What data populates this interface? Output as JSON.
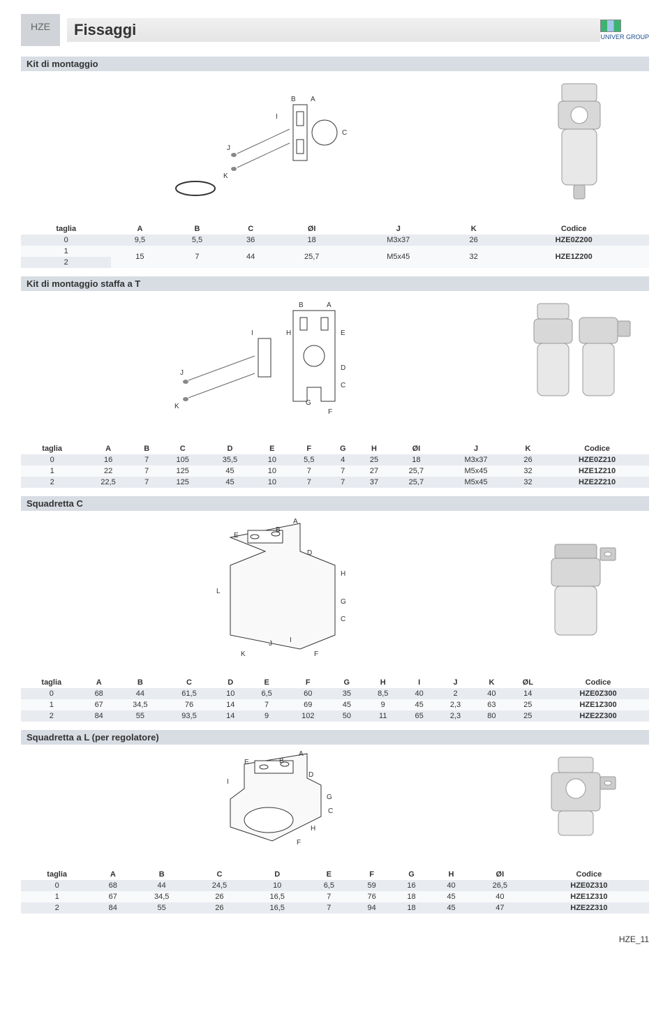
{
  "header": {
    "tag": "HZE",
    "title": "Fissaggi",
    "logo": "UNIVER GROUP"
  },
  "sections": {
    "s1": {
      "title": "Kit di montaggio"
    },
    "s2": {
      "title": "Kit di montaggio staffa a T"
    },
    "s3": {
      "title": "Squadretta C"
    },
    "s4": {
      "title": "Squadretta a L (per regolatore)"
    }
  },
  "table1": {
    "columns": [
      "taglia",
      "A",
      "B",
      "C",
      "ØI",
      "J",
      "K",
      "Codice"
    ],
    "rows": [
      [
        "0",
        "9,5",
        "5,5",
        "36",
        "18",
        "M3x37",
        "26",
        "HZE0Z200"
      ],
      [
        "1",
        "15",
        "7",
        "44",
        "25,7",
        "M5x45",
        "32",
        "HZE1Z200"
      ],
      [
        "2",
        "15",
        "7",
        "44",
        "25,7",
        "M5x45",
        "32",
        "HZE1Z200"
      ]
    ],
    "merged_row12": true
  },
  "table2": {
    "columns": [
      "taglia",
      "A",
      "B",
      "C",
      "D",
      "E",
      "F",
      "G",
      "H",
      "ØI",
      "J",
      "K",
      "Codice"
    ],
    "rows": [
      [
        "0",
        "16",
        "7",
        "105",
        "35,5",
        "10",
        "5,5",
        "4",
        "25",
        "18",
        "M3x37",
        "26",
        "HZE0Z210"
      ],
      [
        "1",
        "22",
        "7",
        "125",
        "45",
        "10",
        "7",
        "7",
        "27",
        "25,7",
        "M5x45",
        "32",
        "HZE1Z210"
      ],
      [
        "2",
        "22,5",
        "7",
        "125",
        "45",
        "10",
        "7",
        "7",
        "37",
        "25,7",
        "M5x45",
        "32",
        "HZE2Z210"
      ]
    ]
  },
  "table3": {
    "columns": [
      "taglia",
      "A",
      "B",
      "C",
      "D",
      "E",
      "F",
      "G",
      "H",
      "I",
      "J",
      "K",
      "ØL",
      "Codice"
    ],
    "rows": [
      [
        "0",
        "68",
        "44",
        "61,5",
        "10",
        "6,5",
        "60",
        "35",
        "8,5",
        "40",
        "2",
        "40",
        "14",
        "HZE0Z300"
      ],
      [
        "1",
        "67",
        "34,5",
        "76",
        "14",
        "7",
        "69",
        "45",
        "9",
        "45",
        "2,3",
        "63",
        "25",
        "HZE1Z300"
      ],
      [
        "2",
        "84",
        "55",
        "93,5",
        "14",
        "9",
        "102",
        "50",
        "11",
        "65",
        "2,3",
        "80",
        "25",
        "HZE2Z300"
      ]
    ]
  },
  "table4": {
    "columns": [
      "taglia",
      "A",
      "B",
      "C",
      "D",
      "E",
      "F",
      "G",
      "H",
      "ØI",
      "Codice"
    ],
    "rows": [
      [
        "0",
        "68",
        "44",
        "24,5",
        "10",
        "6,5",
        "59",
        "16",
        "40",
        "26,5",
        "HZE0Z310"
      ],
      [
        "1",
        "67",
        "34,5",
        "26",
        "16,5",
        "7",
        "76",
        "18",
        "45",
        "40",
        "HZE1Z310"
      ],
      [
        "2",
        "84",
        "55",
        "26",
        "16,5",
        "7",
        "94",
        "18",
        "45",
        "47",
        "HZE2Z310"
      ]
    ]
  },
  "diagram_labels": {
    "d1": [
      "A",
      "B",
      "C",
      "I",
      "J",
      "K"
    ],
    "d2": [
      "A",
      "B",
      "C",
      "D",
      "E",
      "F",
      "G",
      "H",
      "I",
      "J",
      "K"
    ],
    "d3": [
      "A",
      "B",
      "C",
      "D",
      "E",
      "F",
      "G",
      "H",
      "I",
      "J",
      "K",
      "L"
    ],
    "d4": [
      "A",
      "B",
      "C",
      "D",
      "E",
      "F",
      "G",
      "H",
      "I"
    ]
  },
  "footer": "HZE_11",
  "colors": {
    "row_odd": "#e8ebf0",
    "row_even": "#f8f9fa",
    "section_bg": "#d8dde4",
    "tag_bg": "#d0d3d8"
  }
}
